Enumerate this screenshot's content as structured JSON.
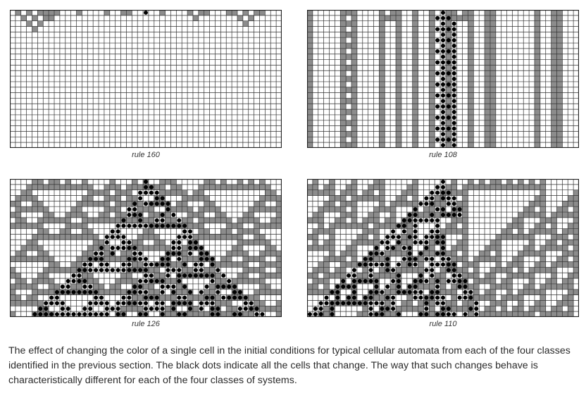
{
  "panels": [
    {
      "id": "p160",
      "rule": 160,
      "label": "rule 160"
    },
    {
      "id": "p108",
      "rule": 108,
      "label": "rule 108"
    },
    {
      "id": "p126",
      "rule": 126,
      "label": "rule 126"
    },
    {
      "id": "p110",
      "rule": 110,
      "label": "rule 110"
    }
  ],
  "colors": {
    "cell_on": "#8c8c8c",
    "cell_off": "#ffffff",
    "grid": "#333333",
    "changed_dot": "#000000"
  },
  "caption": "The effect of changing the color of a single cell in the initial conditions for typical cellular automata from each of the four classes identified in the previous section. The black dots indicate all the cells that change. The way that such changes behave is characteristically different for each of the four classes of systems."
}
